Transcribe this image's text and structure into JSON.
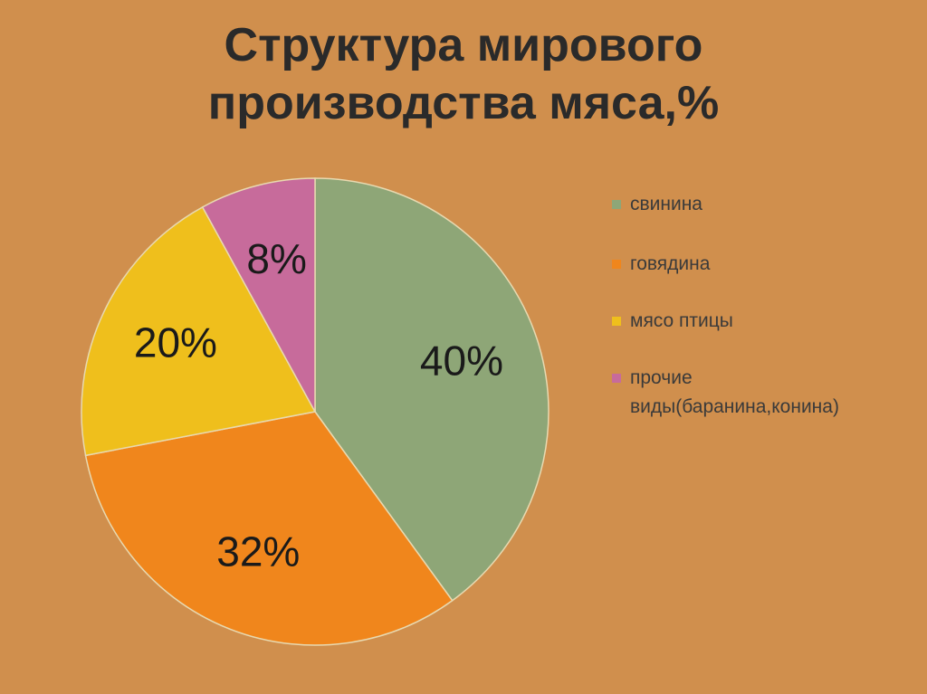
{
  "chart_data": {
    "type": "pie",
    "title": "Структура мирового производства мяса,%",
    "categories": [
      "свинина",
      "говядина",
      "мясо птицы",
      "прочие виды(баранина,конина)"
    ],
    "values": [
      40,
      32,
      20,
      8
    ],
    "value_labels": [
      "40%",
      "32%",
      "20%",
      "8%"
    ],
    "colors": [
      "#8ea677",
      "#f0861c",
      "#efbf1c",
      "#c76b9b"
    ],
    "legend": "right"
  }
}
